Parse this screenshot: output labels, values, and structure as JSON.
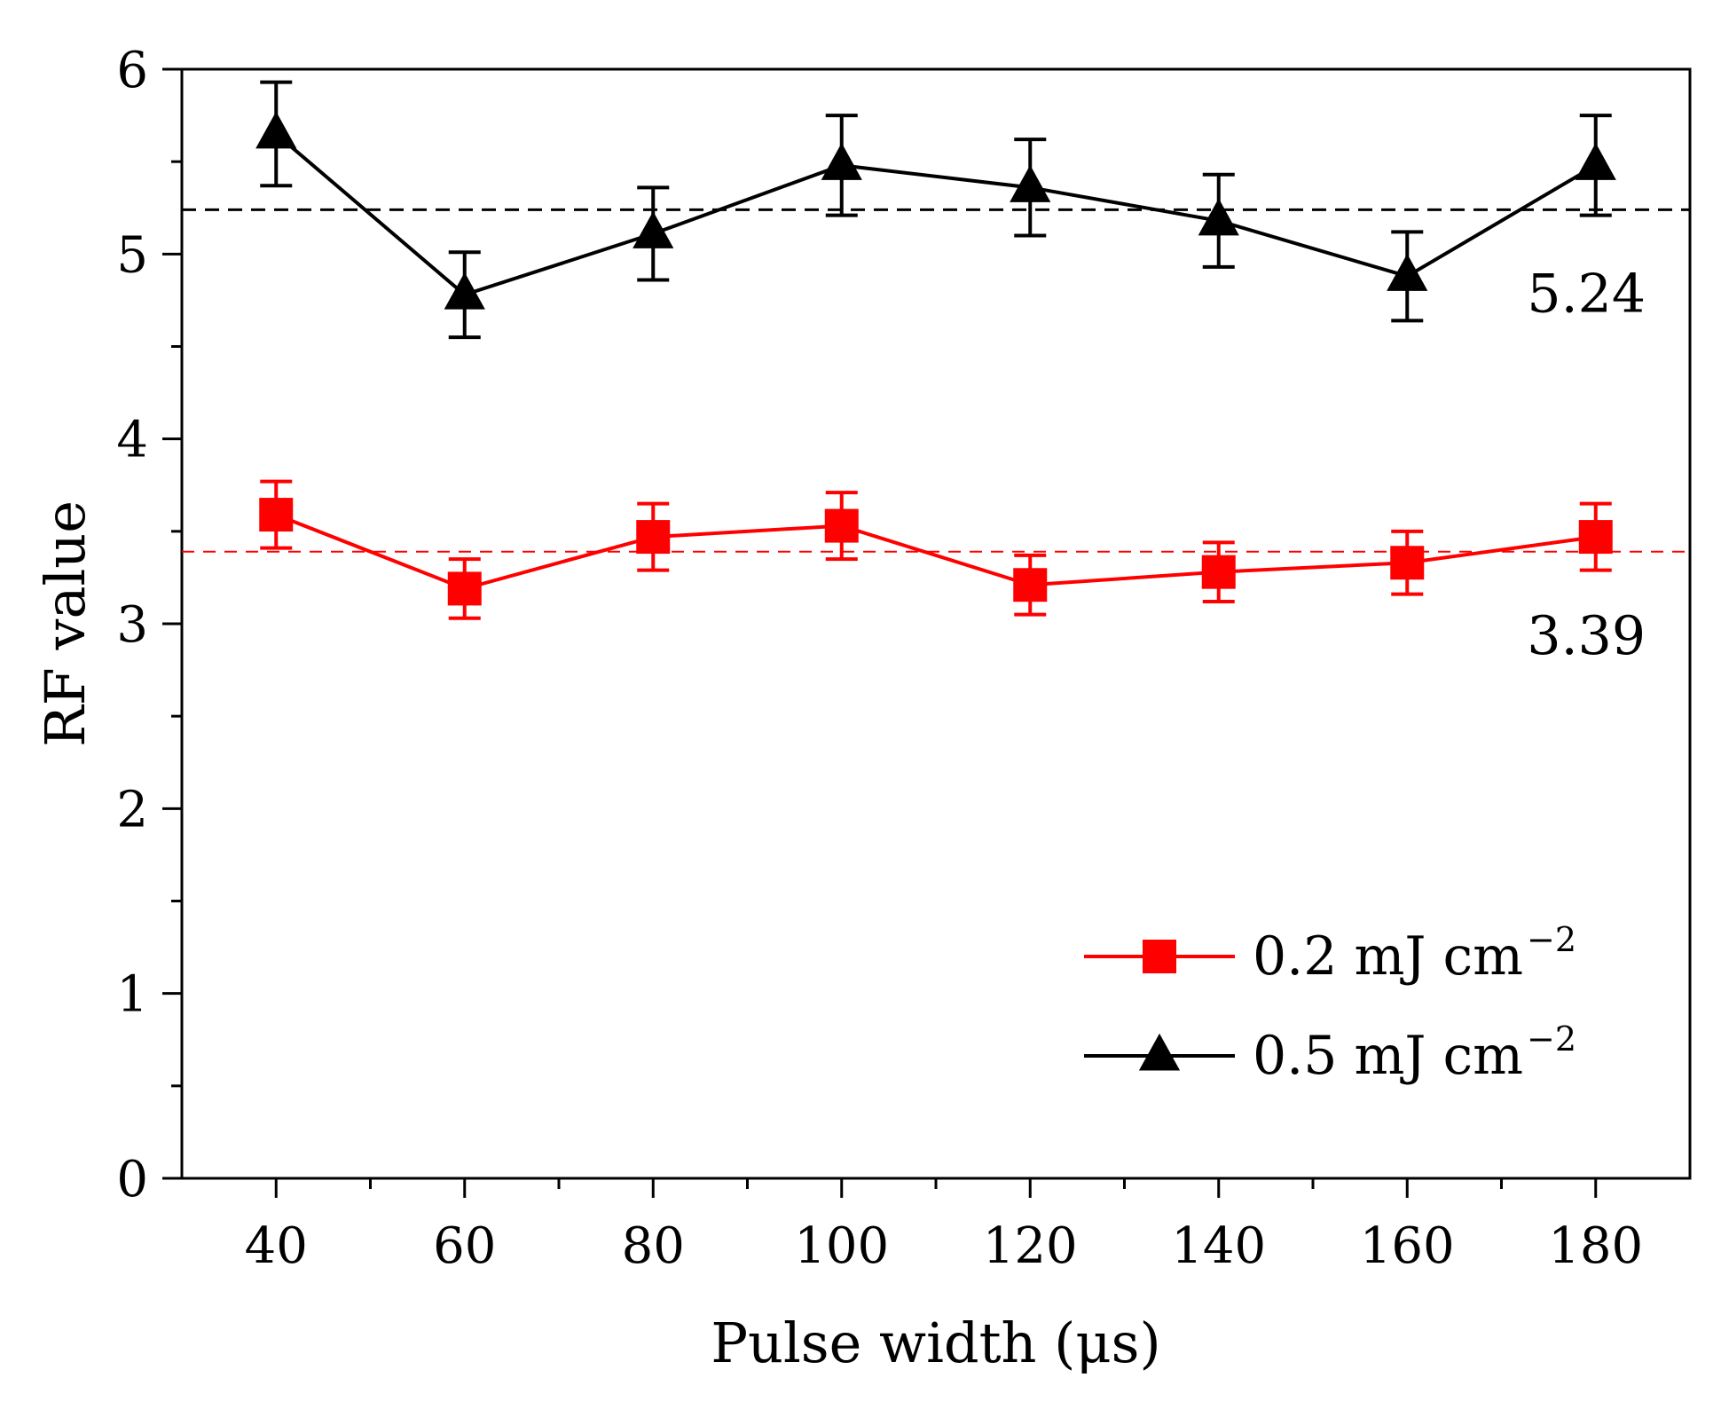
{
  "chart_data": {
    "type": "line",
    "title": "",
    "xlabel": "Pulse width (μs)",
    "ylabel": "RF value",
    "x": [
      40,
      60,
      80,
      100,
      120,
      140,
      160,
      180
    ],
    "xlim": [
      30,
      190
    ],
    "ylim": [
      0,
      6
    ],
    "xticks": [
      40,
      60,
      80,
      100,
      120,
      140,
      160,
      180
    ],
    "yticks": [
      0,
      1,
      2,
      3,
      4,
      5,
      6
    ],
    "grid": false,
    "legend_position": "bottom-right",
    "series": [
      {
        "name": "0.2 mJ cm",
        "name_sup": "−2",
        "color": "#ff0000",
        "marker": "square",
        "values": [
          3.59,
          3.19,
          3.47,
          3.53,
          3.21,
          3.28,
          3.33,
          3.47
        ],
        "errors": [
          0.18,
          0.16,
          0.18,
          0.18,
          0.16,
          0.16,
          0.17,
          0.18
        ]
      },
      {
        "name": "0.5 mJ cm",
        "name_sup": "−2",
        "color": "#000000",
        "marker": "triangle",
        "values": [
          5.65,
          4.78,
          5.11,
          5.48,
          5.36,
          5.18,
          4.88,
          5.48
        ],
        "errors": [
          0.28,
          0.23,
          0.25,
          0.27,
          0.26,
          0.25,
          0.24,
          0.27
        ]
      }
    ],
    "reference_lines": [
      {
        "value": 3.39,
        "label": "3.39",
        "color": "#ff0000"
      },
      {
        "value": 5.24,
        "label": "5.24",
        "color": "#000000"
      }
    ]
  }
}
